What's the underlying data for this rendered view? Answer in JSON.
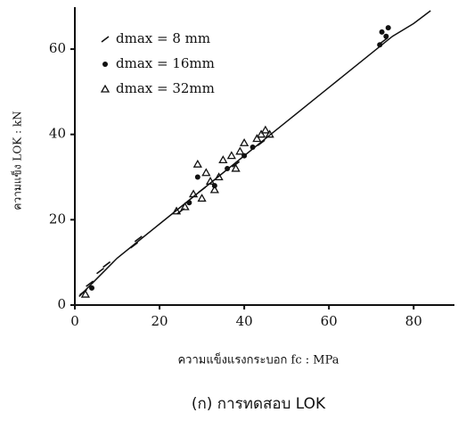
{
  "chart_data": {
    "type": "scatter",
    "x_label": "ความแข็งแรงกระบอก fc : MPa",
    "y_label": "ความแข็ง LOK : kN",
    "caption": "(ก) การทดสอบ LOK",
    "xlim": [
      0,
      89
    ],
    "ylim": [
      0,
      69
    ],
    "xticks": [
      0,
      20,
      40,
      60,
      80
    ],
    "yticks": [
      0,
      20,
      40,
      60
    ],
    "series": [
      {
        "name": "dmax = 8 mm",
        "marker": "tick",
        "color": "#111",
        "x": [
          2,
          3.5,
          6,
          7.5,
          14,
          15,
          25,
          30,
          38,
          44,
          73
        ],
        "values": [
          3,
          5,
          8,
          9.5,
          14,
          15.5,
          22,
          27,
          33,
          38,
          62
        ]
      },
      {
        "name": "dmax = 16mm",
        "marker": "dot",
        "color": "#111",
        "x": [
          4,
          27,
          29,
          33,
          36,
          40,
          42,
          72,
          73.5,
          74,
          72.5
        ],
        "values": [
          4,
          24,
          30,
          28,
          32,
          35,
          37,
          61,
          63,
          65,
          64
        ]
      },
      {
        "name": "dmax = 32mm",
        "marker": "triangle",
        "color": "#111",
        "x": [
          2.5,
          24,
          26,
          28,
          29,
          30,
          31,
          32,
          33,
          34,
          35,
          37,
          38,
          39,
          40,
          43,
          44,
          45,
          46
        ],
        "values": [
          2.5,
          22,
          23,
          26,
          33,
          25,
          31,
          29,
          27,
          30,
          34,
          35,
          32,
          36,
          38,
          39,
          40,
          41,
          40
        ]
      }
    ],
    "fit_line": {
      "x": [
        1,
        5,
        10,
        15,
        20,
        25,
        30,
        35,
        40,
        45,
        50,
        55,
        60,
        65,
        70,
        75,
        80,
        84
      ],
      "values": [
        2,
        6,
        11,
        15,
        19,
        23,
        27,
        31,
        35,
        39,
        43,
        47,
        51,
        55,
        59,
        63,
        66,
        69
      ]
    }
  }
}
